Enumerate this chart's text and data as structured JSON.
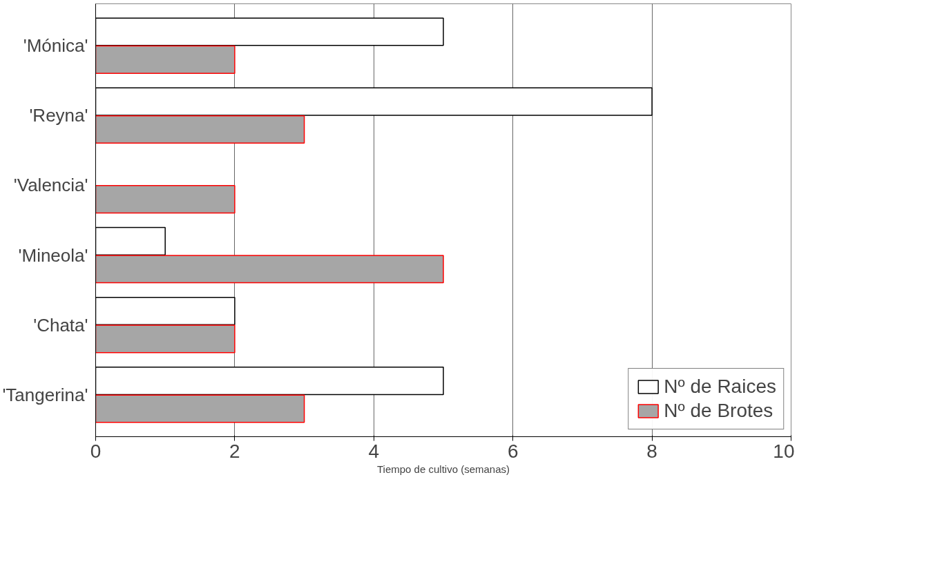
{
  "chart_data": {
    "type": "bar",
    "orientation": "horizontal",
    "categories": [
      "'Mónica'",
      "'Reyna'",
      "'Valencia'",
      "'Mineola'",
      "'Chata'",
      "'Tangerina'"
    ],
    "series": [
      {
        "name": "Nº de Raices",
        "color": "#ffffff",
        "values": [
          5,
          8,
          0,
          1,
          2,
          5
        ]
      },
      {
        "name": "Nº de Brotes",
        "color": "#a6a6a6",
        "values": [
          2,
          3,
          2,
          5,
          2,
          3
        ]
      }
    ],
    "xlabel": "Tiempo de cultivo (semanas)",
    "xlim": [
      0,
      10
    ],
    "xticks": [
      0,
      2,
      4,
      6,
      8,
      10
    ],
    "grid": "x",
    "legend": "bottom right"
  }
}
